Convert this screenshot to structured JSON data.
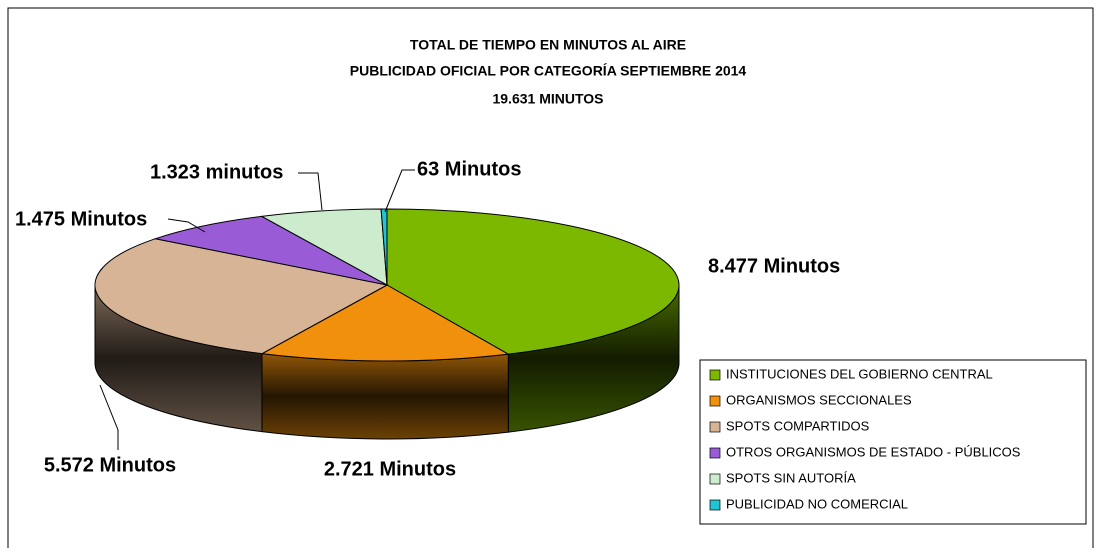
{
  "chart_data": {
    "type": "pie",
    "title": [
      "TOTAL DE TIEMPO EN MINUTOS AL AIRE",
      "PUBLICIDAD OFICIAL POR CATEGORÍA SEPTIEMBRE 2014",
      "19.631  MINUTOS"
    ],
    "categories": [
      "INSTITUCIONES DEL GOBIERNO CENTRAL",
      "ORGANISMOS SECCIONALES",
      "SPOTS COMPARTIDOS",
      "OTROS ORGANISMOS DE ESTADO - PÚBLICOS",
      "SPOTS SIN AUTORÍA",
      "PUBLICIDAD NO COMERCIAL"
    ],
    "values": [
      8477,
      2721,
      5572,
      1475,
      1323,
      63
    ],
    "value_labels": [
      "8.477 Minutos",
      "2.721 Minutos",
      "5.572 Minutos",
      "1.475 Minutos",
      "1.323 minutos",
      "63 Minutos"
    ],
    "colors": [
      "#7cb800",
      "#f0900c",
      "#d8b496",
      "#9a5cd6",
      "#cdeccd",
      "#22c4d4"
    ],
    "legend": "right"
  }
}
